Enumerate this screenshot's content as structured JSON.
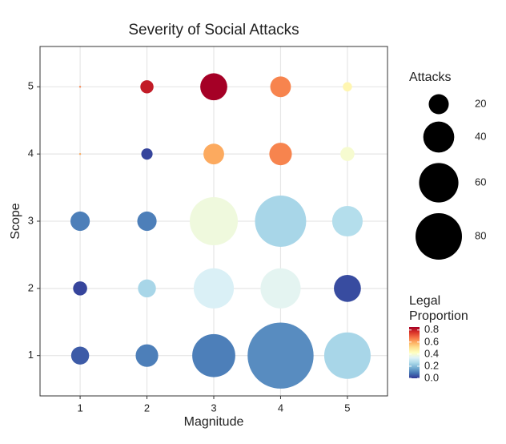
{
  "chart_data": {
    "type": "scatter",
    "title": "Severity of Social Attacks",
    "x_label": "Magnitude",
    "y_label": "Scope",
    "xlim": [
      0.4,
      5.6
    ],
    "xticks": [
      1,
      2,
      3,
      4,
      5
    ],
    "ylim": [
      0.4,
      5.6
    ],
    "yticks": [
      1,
      2,
      3,
      4,
      5
    ],
    "grid": true,
    "x": [
      1,
      2,
      3,
      4,
      5,
      1,
      2,
      3,
      4,
      5,
      1,
      2,
      3,
      4,
      5,
      1,
      2,
      3,
      4,
      5,
      1,
      2,
      3,
      4,
      5
    ],
    "y": [
      1,
      1,
      1,
      1,
      1,
      2,
      2,
      2,
      2,
      2,
      3,
      3,
      3,
      3,
      3,
      4,
      4,
      4,
      4,
      4,
      5,
      5,
      5,
      5,
      5
    ],
    "sizes": [
      17,
      24,
      70,
      150,
      80,
      12,
      17,
      62,
      62,
      32,
      19,
      19,
      85,
      95,
      39,
      1,
      9,
      21,
      24,
      12,
      1,
      11,
      32,
      21,
      7
    ],
    "color_values": [
      0.05,
      0.1,
      0.1,
      0.12,
      0.25,
      0.02,
      0.25,
      0.33,
      0.35,
      0.03,
      0.1,
      0.1,
      0.38,
      0.25,
      0.27,
      0.6,
      0.02,
      0.6,
      0.65,
      0.4,
      0.65,
      0.8,
      0.85,
      0.65,
      0.45
    ],
    "size_legend": {
      "title": "Attacks",
      "values": [
        20,
        40,
        60,
        80
      ]
    },
    "color_legend": {
      "title_lines": [
        "Legal",
        "Proportion"
      ],
      "lim": [
        0,
        0.85
      ],
      "ticks": [
        {
          "value": 0,
          "label": "0.0"
        },
        {
          "value": 0.2,
          "label": "0.2"
        },
        {
          "value": 0.4,
          "label": "0.4"
        },
        {
          "value": 0.6,
          "label": "0.6"
        },
        {
          "value": 0.8,
          "label": "0.8"
        }
      ],
      "palette": [
        "#313695",
        "#4575b4",
        "#74add1",
        "#abd9e9",
        "#e0f3f8",
        "#ffffbf",
        "#fee090",
        "#fdae61",
        "#f46d43",
        "#d73027",
        "#a50026"
      ]
    }
  }
}
